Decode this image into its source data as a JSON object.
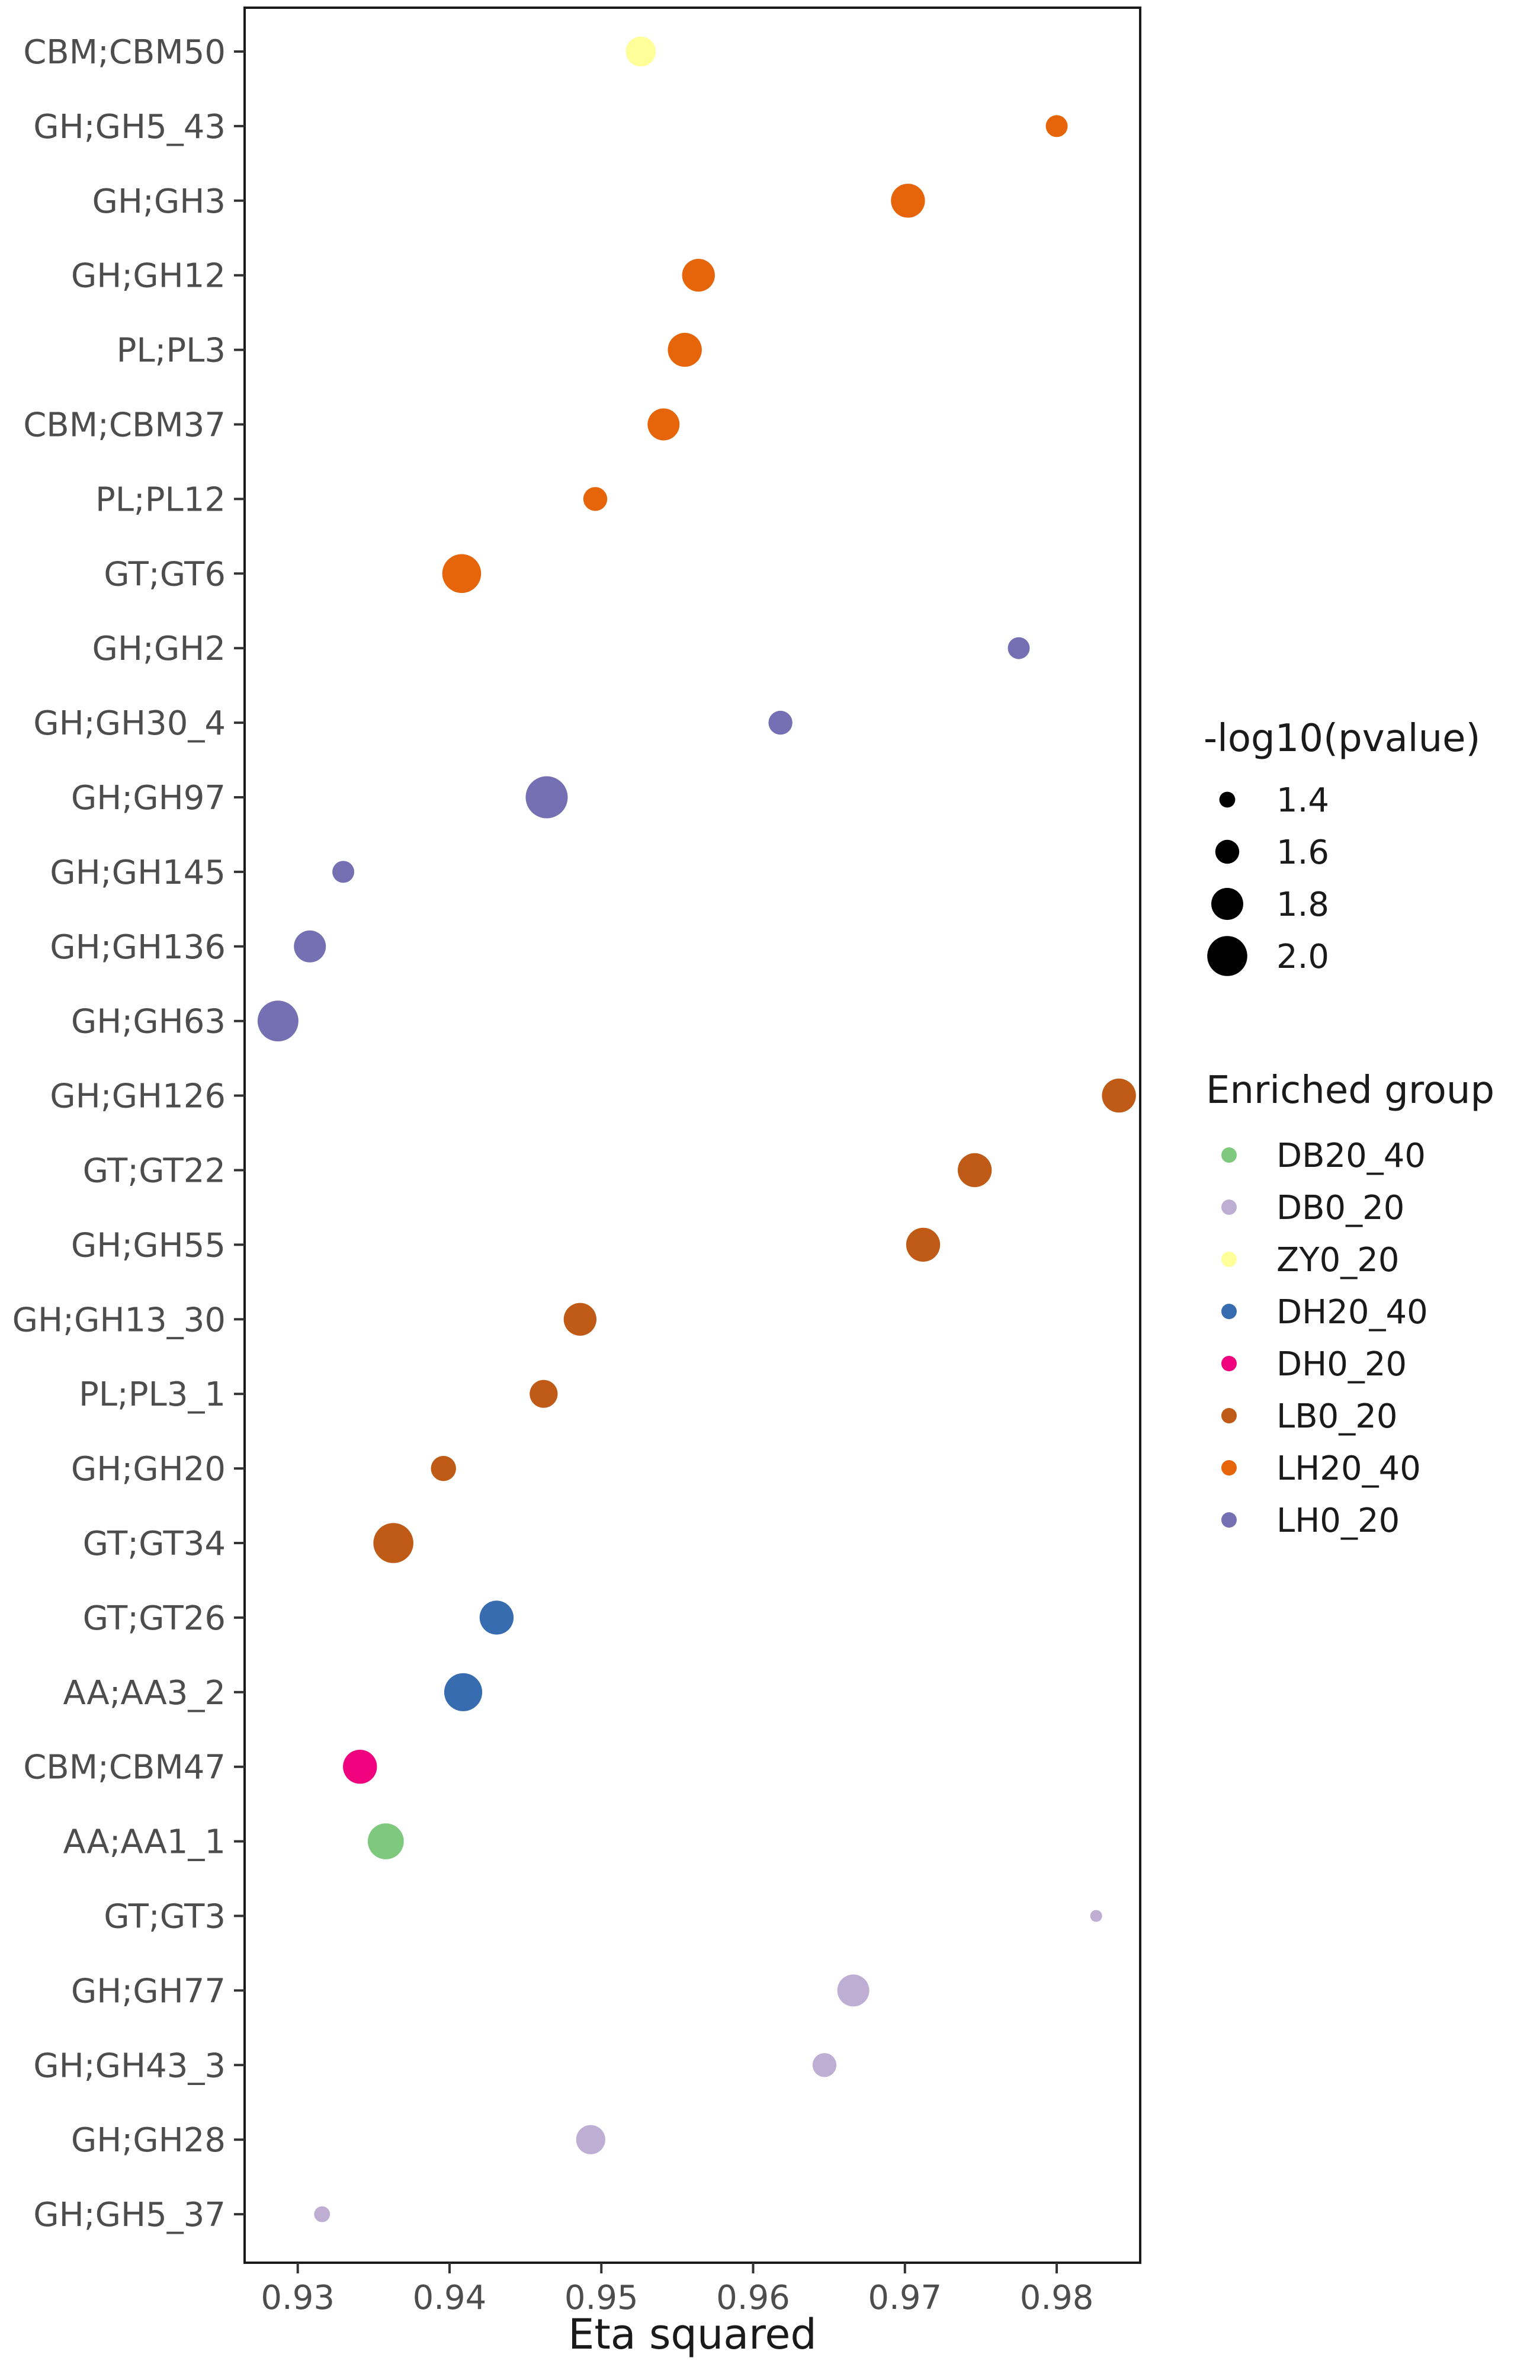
{
  "chart_data": {
    "type": "scatter",
    "title": "",
    "xlabel": "Eta squared",
    "ylabel": "",
    "xlim": [
      0.9265,
      0.9855
    ],
    "x_ticks": [
      "0.93",
      "0.94",
      "0.95",
      "0.96",
      "0.97",
      "0.98"
    ],
    "x_tick_values": [
      0.93,
      0.94,
      0.95,
      0.96,
      0.97,
      0.98
    ],
    "grid": false,
    "size_legend": {
      "title": "-log10(pvalue)",
      "entries": [
        {
          "label": "1.4",
          "value": 1.4
        },
        {
          "label": "1.6",
          "value": 1.6
        },
        {
          "label": "1.8",
          "value": 1.8
        },
        {
          "label": "2.0",
          "value": 2.0
        }
      ]
    },
    "color_legend": {
      "title": "Enriched group",
      "groups": [
        {
          "name": "DB20_40",
          "color": "#7fc97f"
        },
        {
          "name": "DB0_20",
          "color": "#beaed4"
        },
        {
          "name": "ZY0_20",
          "color": "#ffff99"
        },
        {
          "name": "DH20_40",
          "color": "#386cb0"
        },
        {
          "name": "DH0_20",
          "color": "#f0027f"
        },
        {
          "name": "LB0_20",
          "color": "#bf5b17"
        },
        {
          "name": "LH20_40",
          "color": "#e6650b"
        },
        {
          "name": "LH0_20",
          "color": "#7570b3"
        }
      ]
    },
    "points": [
      {
        "label": "CBM;CBM50",
        "x": 0.9526,
        "size": 1.75,
        "group": "ZY0_20"
      },
      {
        "label": "GH;GH5_43",
        "x": 0.98,
        "size": 1.55,
        "group": "LH20_40"
      },
      {
        "label": "GH;GH3",
        "x": 0.9702,
        "size": 1.85,
        "group": "LH20_40"
      },
      {
        "label": "GH;GH12",
        "x": 0.9564,
        "size": 1.82,
        "group": "LH20_40"
      },
      {
        "label": "PL;PL3",
        "x": 0.9555,
        "size": 1.85,
        "group": "LH20_40"
      },
      {
        "label": "CBM;CBM37",
        "x": 0.9541,
        "size": 1.8,
        "group": "LH20_40"
      },
      {
        "label": "PL;PL12",
        "x": 0.9496,
        "size": 1.6,
        "group": "LH20_40"
      },
      {
        "label": "GT;GT6",
        "x": 0.9408,
        "size": 1.97,
        "group": "LH20_40"
      },
      {
        "label": "GH;GH2",
        "x": 0.9775,
        "size": 1.55,
        "group": "LH0_20"
      },
      {
        "label": "GH;GH30_4",
        "x": 0.9618,
        "size": 1.6,
        "group": "LH0_20"
      },
      {
        "label": "GH;GH97",
        "x": 0.9464,
        "size": 2.05,
        "group": "LH0_20"
      },
      {
        "label": "GH;GH145",
        "x": 0.933,
        "size": 1.55,
        "group": "LH0_20"
      },
      {
        "label": "GH;GH136",
        "x": 0.9308,
        "size": 1.8,
        "group": "LH0_20"
      },
      {
        "label": "GH;GH63",
        "x": 0.9287,
        "size": 2.02,
        "group": "LH0_20"
      },
      {
        "label": "GH;GH126",
        "x": 0.9841,
        "size": 1.85,
        "group": "LB0_20"
      },
      {
        "label": "GT;GT22",
        "x": 0.9746,
        "size": 1.85,
        "group": "LB0_20"
      },
      {
        "label": "GH;GH55",
        "x": 0.9712,
        "size": 1.85,
        "group": "LB0_20"
      },
      {
        "label": "GH;GH13_30",
        "x": 0.9486,
        "size": 1.82,
        "group": "LB0_20"
      },
      {
        "label": "PL;PL3_1",
        "x": 0.9462,
        "size": 1.7,
        "group": "LB0_20"
      },
      {
        "label": "GH;GH20",
        "x": 0.9396,
        "size": 1.63,
        "group": "LB0_20"
      },
      {
        "label": "GT;GT34",
        "x": 0.9363,
        "size": 2.0,
        "group": "LB0_20"
      },
      {
        "label": "GT;GT26",
        "x": 0.9431,
        "size": 1.85,
        "group": "DH20_40"
      },
      {
        "label": "AA;AA3_2",
        "x": 0.9409,
        "size": 1.95,
        "group": "DH20_40"
      },
      {
        "label": "CBM;CBM47",
        "x": 0.9341,
        "size": 1.85,
        "group": "DH0_20"
      },
      {
        "label": "AA;AA1_1",
        "x": 0.9358,
        "size": 1.9,
        "group": "DB20_40"
      },
      {
        "label": "GT;GT3",
        "x": 0.9826,
        "size": 1.3,
        "group": "DB0_20"
      },
      {
        "label": "GH;GH77",
        "x": 0.9666,
        "size": 1.8,
        "group": "DB0_20"
      },
      {
        "label": "GH;GH43_3",
        "x": 0.9647,
        "size": 1.6,
        "group": "DB0_20"
      },
      {
        "label": "GH;GH28",
        "x": 0.9493,
        "size": 1.73,
        "group": "DB0_20"
      },
      {
        "label": "GH;GH5_37",
        "x": 0.9316,
        "size": 1.4,
        "group": "DB0_20"
      }
    ]
  }
}
